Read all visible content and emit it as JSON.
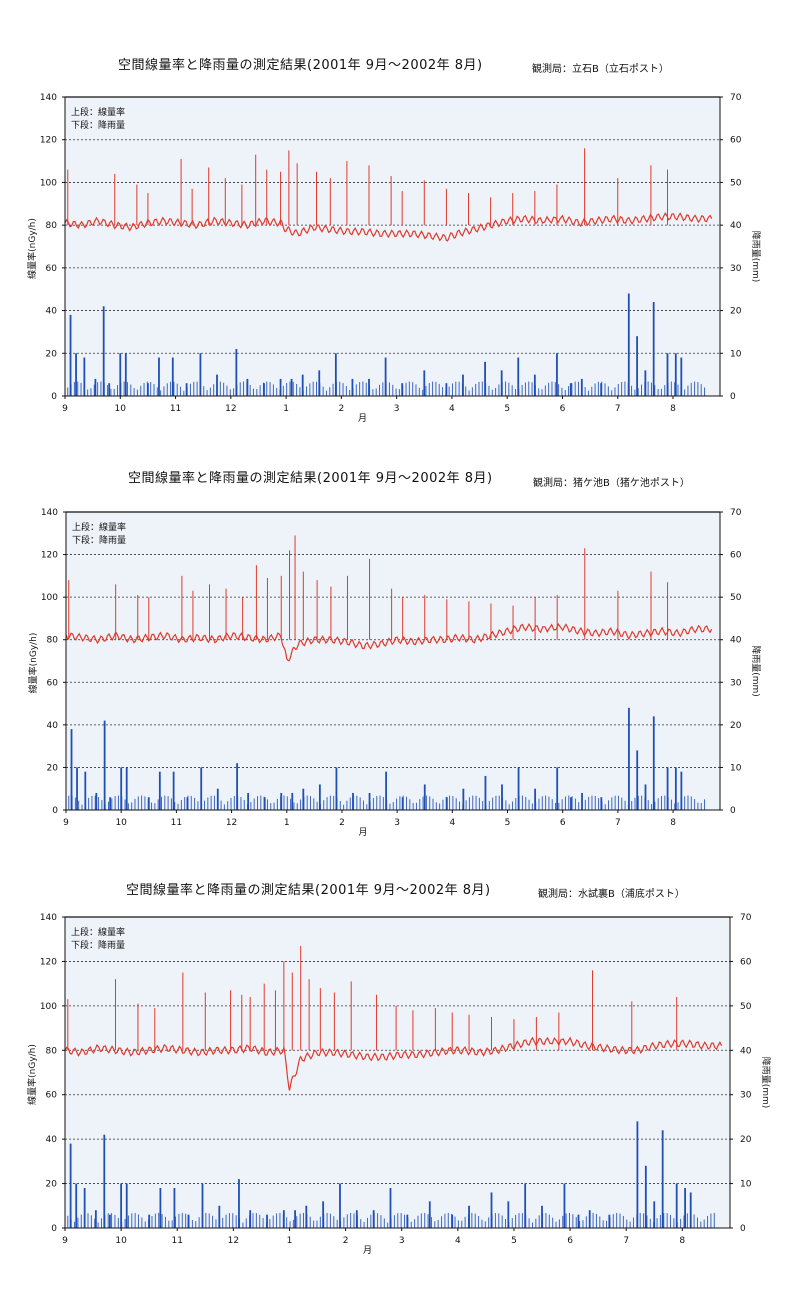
{
  "chart_data": [
    {
      "type": "line",
      "title": "空間線量率と降雨量の測定結果(2001年 9月～2002年 8月)",
      "station": "観測局：立石B（立石ポスト）",
      "legend": [
        "上段：線量率",
        "下段：降雨量"
      ],
      "ylabel": "線量率(nGy/h)",
      "y2label": "降雨量(mm)",
      "xlabel": "月",
      "ylim": [
        0,
        140
      ],
      "y2lim": [
        0,
        70
      ],
      "yticks": [
        "0",
        "20",
        "40",
        "60",
        "80",
        "100",
        "120",
        "140"
      ],
      "y2ticks": [
        "0",
        "10",
        "20",
        "30",
        "40",
        "50",
        "60",
        "70"
      ],
      "xticks": [
        "9",
        "10",
        "11",
        "12",
        "1",
        "2",
        "3",
        "4",
        "5",
        "6",
        "7",
        "8"
      ],
      "grid": true,
      "colors": {
        "dose": "#e03a2b",
        "rain": "#1f4fb5",
        "background": "#eef3fa"
      },
      "series": [
        {
          "name": "線量率",
          "kind": "line",
          "axis": "left",
          "x": [
            0,
            0.3,
            0.6,
            0.9,
            1.2,
            1.5,
            1.8,
            2.1,
            2.4,
            2.7,
            3.0,
            3.3,
            3.6,
            3.9,
            4.0,
            4.2,
            4.5,
            4.8,
            5.1,
            5.4,
            5.7,
            6.0,
            6.3,
            6.6,
            6.9,
            7.1,
            7.4,
            7.7,
            8.0,
            8.3,
            8.6,
            9.0,
            9.3,
            9.6,
            9.9,
            10.2,
            10.5,
            10.8,
            11.1,
            11.4,
            11.7
          ],
          "y": [
            81,
            80,
            82,
            80,
            79,
            81,
            82,
            81,
            80,
            82,
            81,
            80,
            82,
            81,
            78,
            76,
            79,
            78,
            77,
            77,
            76,
            76,
            76,
            75,
            74,
            76,
            78,
            80,
            82,
            83,
            82,
            83,
            81,
            82,
            83,
            82,
            83,
            84,
            84,
            83,
            83
          ]
        },
        {
          "name": "線量率ピーク",
          "kind": "spikes",
          "axis": "left",
          "base": 80,
          "x": [
            0.05,
            0.9,
            1.3,
            1.5,
            2.1,
            2.3,
            2.6,
            2.9,
            3.2,
            3.45,
            3.65,
            3.9,
            4.05,
            4.2,
            4.55,
            4.8,
            5.1,
            5.5,
            5.9,
            6.1,
            6.5,
            6.9,
            7.3,
            7.7,
            8.1,
            8.5,
            8.9,
            9.4,
            10.0,
            10.6,
            10.9
          ],
          "y": [
            106,
            104,
            99,
            95,
            111,
            97,
            107,
            102,
            99,
            113,
            106,
            105,
            115,
            109,
            105,
            102,
            110,
            108,
            103,
            96,
            101,
            97,
            95,
            93,
            95,
            96,
            99,
            116,
            102,
            108,
            106
          ]
        },
        {
          "name": "降雨量",
          "kind": "bars",
          "axis": "right",
          "x": [
            0.1,
            0.2,
            0.35,
            0.55,
            0.7,
            0.8,
            1.0,
            1.1,
            1.5,
            1.7,
            1.95,
            2.2,
            2.45,
            2.75,
            3.1,
            3.3,
            3.6,
            3.9,
            4.1,
            4.3,
            4.6,
            4.9,
            5.2,
            5.5,
            5.8,
            6.1,
            6.5,
            6.9,
            7.2,
            7.6,
            7.9,
            8.2,
            8.5,
            8.9,
            9.15,
            9.35,
            9.7,
            10.2,
            10.35,
            10.5,
            10.65,
            10.9,
            11.05,
            11.15
          ],
          "y": [
            19,
            10,
            9,
            4,
            21,
            3,
            10,
            10,
            3,
            9,
            9,
            3,
            10,
            5,
            11,
            4,
            3,
            4,
            4,
            5,
            6,
            10,
            4,
            4,
            9,
            3,
            6,
            3,
            5,
            8,
            6,
            9,
            5,
            10,
            3,
            4,
            3,
            24,
            14,
            6,
            22,
            10,
            10,
            9
          ]
        }
      ]
    },
    {
      "type": "line",
      "title": "空間線量率と降雨量の測定結果(2001年 9月～2002年 8月)",
      "station": "観測局：猪ケ池B（猪ケ池ポスト）",
      "legend": [
        "上段：線量率",
        "下段：降雨量"
      ],
      "ylabel": "線量率(nGy/h)",
      "y2label": "降雨量(mm)",
      "xlabel": "月",
      "ylim": [
        0,
        140
      ],
      "y2lim": [
        0,
        70
      ],
      "yticks": [
        "0",
        "20",
        "40",
        "60",
        "80",
        "100",
        "120",
        "140"
      ],
      "y2ticks": [
        "0",
        "10",
        "20",
        "30",
        "40",
        "50",
        "60",
        "70"
      ],
      "xticks": [
        "9",
        "10",
        "11",
        "12",
        "1",
        "2",
        "3",
        "4",
        "5",
        "6",
        "7",
        "8"
      ],
      "grid": true,
      "colors": {
        "dose": "#e03a2b",
        "rain": "#1f4fb5",
        "background": "#eef3fa"
      },
      "series": [
        {
          "name": "線量率",
          "kind": "line",
          "axis": "left",
          "x": [
            0,
            0.3,
            0.6,
            0.9,
            1.2,
            1.5,
            1.8,
            2.1,
            2.4,
            2.7,
            3.0,
            3.3,
            3.6,
            3.9,
            4.0,
            4.2,
            4.5,
            4.8,
            5.1,
            5.4,
            5.7,
            6.0,
            6.3,
            6.6,
            6.9,
            7.1,
            7.4,
            7.7,
            8.0,
            8.3,
            8.6,
            9.0,
            9.3,
            9.6,
            9.9,
            10.2,
            10.5,
            10.8,
            11.1,
            11.4,
            11.7
          ],
          "y": [
            82,
            81,
            80,
            82,
            80,
            81,
            82,
            80,
            81,
            80,
            82,
            81,
            80,
            82,
            70,
            78,
            80,
            80,
            79,
            77,
            78,
            80,
            79,
            80,
            80,
            81,
            80,
            82,
            84,
            86,
            85,
            86,
            84,
            83,
            84,
            82,
            83,
            84,
            83,
            85,
            85
          ]
        },
        {
          "name": "線量率ピーク",
          "kind": "spikes",
          "axis": "left",
          "base": 80,
          "x": [
            0.05,
            0.9,
            1.3,
            1.5,
            2.1,
            2.3,
            2.6,
            2.9,
            3.2,
            3.45,
            3.65,
            3.9,
            4.05,
            4.15,
            4.3,
            4.55,
            4.8,
            5.1,
            5.5,
            5.9,
            6.1,
            6.5,
            6.9,
            7.3,
            7.7,
            8.1,
            8.5,
            8.9,
            9.4,
            10.0,
            10.6,
            10.9
          ],
          "y": [
            108,
            106,
            101,
            100,
            110,
            103,
            106,
            104,
            100,
            115,
            109,
            110,
            122,
            129,
            112,
            108,
            105,
            110,
            118,
            104,
            100,
            101,
            99,
            98,
            97,
            96,
            100,
            101,
            123,
            103,
            112,
            107
          ]
        },
        {
          "name": "降雨量",
          "kind": "bars",
          "axis": "right",
          "x": [
            0.1,
            0.2,
            0.35,
            0.55,
            0.7,
            0.8,
            1.0,
            1.1,
            1.5,
            1.7,
            1.95,
            2.2,
            2.45,
            2.75,
            3.1,
            3.3,
            3.6,
            3.9,
            4.1,
            4.3,
            4.6,
            4.9,
            5.2,
            5.5,
            5.8,
            6.1,
            6.5,
            6.9,
            7.2,
            7.6,
            7.9,
            8.2,
            8.5,
            8.9,
            9.15,
            9.35,
            9.7,
            10.2,
            10.35,
            10.5,
            10.65,
            10.9,
            11.05,
            11.15
          ],
          "y": [
            19,
            10,
            9,
            4,
            21,
            3,
            10,
            10,
            3,
            9,
            9,
            3,
            10,
            5,
            11,
            4,
            3,
            4,
            4,
            5,
            6,
            10,
            4,
            4,
            9,
            3,
            6,
            3,
            5,
            8,
            6,
            10,
            5,
            10,
            3,
            4,
            3,
            24,
            14,
            6,
            22,
            10,
            10,
            9
          ]
        }
      ]
    },
    {
      "type": "line",
      "title": "空間線量率と降雨量の測定結果(2001年 9月～2002年 8月)",
      "station": "観測局：水試裏B（浦底ポスト）",
      "legend": [
        "上段：線量率",
        "下段：降雨量"
      ],
      "ylabel": "線量率(nGy/h)",
      "y2label": "降雨量(mm)",
      "xlabel": "月",
      "ylim": [
        0,
        140
      ],
      "y2lim": [
        0,
        70
      ],
      "yticks": [
        "0",
        "20",
        "40",
        "60",
        "80",
        "100",
        "120",
        "140"
      ],
      "y2ticks": [
        "0",
        "10",
        "20",
        "30",
        "40",
        "50",
        "60",
        "70"
      ],
      "xticks": [
        "9",
        "10",
        "11",
        "12",
        "1",
        "2",
        "3",
        "4",
        "5",
        "6",
        "7",
        "8"
      ],
      "grid": true,
      "colors": {
        "dose": "#e03a2b",
        "rain": "#1f4fb5",
        "background": "#eef3fa"
      },
      "series": [
        {
          "name": "線量率",
          "kind": "line",
          "axis": "left",
          "x": [
            0,
            0.3,
            0.6,
            0.9,
            1.2,
            1.5,
            1.8,
            2.1,
            2.4,
            2.7,
            3.0,
            3.3,
            3.6,
            3.9,
            4.0,
            4.2,
            4.5,
            4.8,
            5.1,
            5.4,
            5.7,
            6.0,
            6.3,
            6.6,
            6.9,
            7.1,
            7.4,
            7.7,
            8.0,
            8.3,
            8.6,
            9.0,
            9.3,
            9.6,
            9.9,
            10.2,
            10.5,
            10.8,
            11.1,
            11.4,
            11.7
          ],
          "y": [
            80,
            79,
            81,
            80,
            79,
            80,
            81,
            80,
            79,
            80,
            80,
            81,
            79,
            80,
            63,
            76,
            79,
            79,
            78,
            77,
            77,
            78,
            78,
            79,
            80,
            80,
            79,
            80,
            82,
            84,
            84,
            84,
            82,
            81,
            80,
            80,
            82,
            83,
            83,
            82,
            82
          ]
        },
        {
          "name": "線量率ピーク",
          "kind": "spikes",
          "axis": "left",
          "base": 80,
          "x": [
            0.05,
            0.9,
            1.3,
            1.6,
            2.1,
            2.5,
            2.95,
            3.15,
            3.3,
            3.55,
            3.75,
            3.9,
            4.05,
            4.2,
            4.35,
            4.55,
            4.8,
            5.1,
            5.55,
            5.9,
            6.2,
            6.6,
            6.9,
            7.2,
            7.6,
            8.0,
            8.4,
            8.8,
            9.4,
            10.1,
            10.9
          ],
          "y": [
            103,
            112,
            101,
            99,
            115,
            106,
            107,
            105,
            104,
            110,
            107,
            120,
            115,
            127,
            112,
            108,
            106,
            111,
            105,
            100,
            98,
            99,
            97,
            96,
            95,
            94,
            95,
            97,
            116,
            102,
            104
          ]
        },
        {
          "name": "降雨量",
          "kind": "bars",
          "axis": "right",
          "x": [
            0.1,
            0.2,
            0.35,
            0.55,
            0.7,
            0.8,
            1.0,
            1.1,
            1.5,
            1.7,
            1.95,
            2.2,
            2.45,
            2.75,
            3.1,
            3.3,
            3.6,
            3.9,
            4.1,
            4.3,
            4.6,
            4.9,
            5.2,
            5.5,
            5.8,
            6.1,
            6.5,
            6.9,
            7.2,
            7.6,
            7.9,
            8.2,
            8.5,
            8.9,
            9.15,
            9.35,
            9.7,
            10.2,
            10.35,
            10.5,
            10.65,
            10.9,
            11.05,
            11.15
          ],
          "y": [
            19,
            10,
            9,
            4,
            21,
            3,
            10,
            10,
            3,
            9,
            9,
            3,
            10,
            5,
            11,
            4,
            3,
            4,
            4,
            5,
            6,
            10,
            4,
            4,
            9,
            3,
            6,
            3,
            5,
            8,
            6,
            10,
            5,
            10,
            3,
            4,
            3,
            24,
            14,
            6,
            22,
            10,
            9,
            8
          ]
        }
      ]
    }
  ]
}
